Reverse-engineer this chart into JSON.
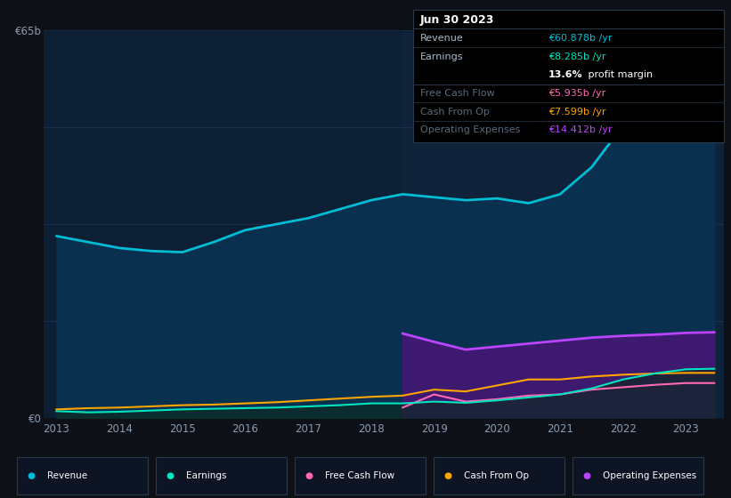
{
  "bg_color": "#0d1117",
  "chart_bg": "#0d1f35",
  "grid_color": "#253d5a",
  "x_years": [
    2013.0,
    2013.5,
    2014.0,
    2014.5,
    2015.0,
    2015.5,
    2016.0,
    2016.5,
    2017.0,
    2017.5,
    2018.0,
    2018.5,
    2019.0,
    2019.5,
    2020.0,
    2020.5,
    2021.0,
    2021.5,
    2022.0,
    2022.5,
    2023.0,
    2023.45
  ],
  "revenue": [
    30.5,
    29.5,
    28.5,
    28.0,
    27.8,
    29.5,
    31.5,
    32.5,
    33.5,
    35.0,
    36.5,
    37.5,
    37.0,
    36.5,
    36.8,
    36.0,
    37.5,
    42.0,
    49.0,
    54.0,
    59.5,
    60.9
  ],
  "earnings": [
    1.2,
    1.0,
    1.1,
    1.3,
    1.5,
    1.6,
    1.7,
    1.8,
    2.0,
    2.2,
    2.5,
    2.5,
    2.8,
    2.6,
    3.0,
    3.5,
    4.0,
    5.0,
    6.5,
    7.5,
    8.2,
    8.3
  ],
  "free_cash_flow": [
    0.0,
    0.0,
    0.0,
    0.0,
    0.0,
    0.0,
    0.0,
    0.0,
    0.0,
    0.0,
    0.0,
    1.8,
    4.0,
    2.8,
    3.2,
    3.8,
    4.0,
    4.8,
    5.2,
    5.6,
    5.9,
    5.9
  ],
  "cash_from_op": [
    1.5,
    1.7,
    1.8,
    2.0,
    2.2,
    2.3,
    2.5,
    2.7,
    3.0,
    3.3,
    3.6,
    3.8,
    4.8,
    4.5,
    5.5,
    6.5,
    6.5,
    7.0,
    7.3,
    7.5,
    7.6,
    7.6
  ],
  "op_expenses": [
    0.0,
    0.0,
    0.0,
    0.0,
    0.0,
    0.0,
    0.0,
    0.0,
    0.0,
    0.0,
    0.0,
    14.2,
    12.8,
    11.5,
    12.0,
    12.5,
    13.0,
    13.5,
    13.8,
    14.0,
    14.3,
    14.4
  ],
  "revenue_color": "#00bcd4",
  "earnings_color": "#00e5c0",
  "fcf_color": "#ff69b4",
  "cashop_color": "#ffa500",
  "opex_color": "#bb44ff",
  "revenue_fill": "#0a3050",
  "opex_fill_color": "#3d1a70",
  "earnings_fill_color": "#1a3a2a",
  "highlight_shade": "#1a2a40",
  "ylim": [
    0,
    65
  ],
  "xlim_min": 2012.8,
  "xlim_max": 2023.6,
  "highlight_x": 2018.5,
  "xtick_positions": [
    2013,
    2014,
    2015,
    2016,
    2017,
    2018,
    2019,
    2020,
    2021,
    2022,
    2023
  ],
  "xtick_labels": [
    "2013",
    "2014",
    "2015",
    "2016",
    "2017",
    "2018",
    "2019",
    "2020",
    "2021",
    "2022",
    "2023"
  ],
  "ytick_positions": [
    0,
    65
  ],
  "ytick_labels": [
    "€0",
    "€65b"
  ],
  "grid_lines": [
    16.25,
    32.5,
    48.75
  ],
  "info_box": {
    "title": "Jun 30 2023",
    "rows": [
      {
        "label": "Revenue",
        "value": "€60.878b /yr",
        "value_color": "#00bcd4",
        "dim": false
      },
      {
        "label": "Earnings",
        "value": "€8.285b /yr",
        "value_color": "#00e5c0",
        "dim": false
      },
      {
        "label": "",
        "value": "",
        "value_color": "#ffffff",
        "dim": false,
        "special": "margin"
      },
      {
        "label": "Free Cash Flow",
        "value": "€5.935b /yr",
        "value_color": "#ff69b4",
        "dim": true
      },
      {
        "label": "Cash From Op",
        "value": "€7.599b /yr",
        "value_color": "#ffa500",
        "dim": true
      },
      {
        "label": "Operating Expenses",
        "value": "€14.412b /yr",
        "value_color": "#bb44ff",
        "dim": true
      }
    ]
  },
  "legend_items": [
    {
      "label": "Revenue",
      "color": "#00bcd4"
    },
    {
      "label": "Earnings",
      "color": "#00e5c0"
    },
    {
      "label": "Free Cash Flow",
      "color": "#ff69b4"
    },
    {
      "label": "Cash From Op",
      "color": "#ffa500"
    },
    {
      "label": "Operating Expenses",
      "color": "#bb44ff"
    }
  ]
}
